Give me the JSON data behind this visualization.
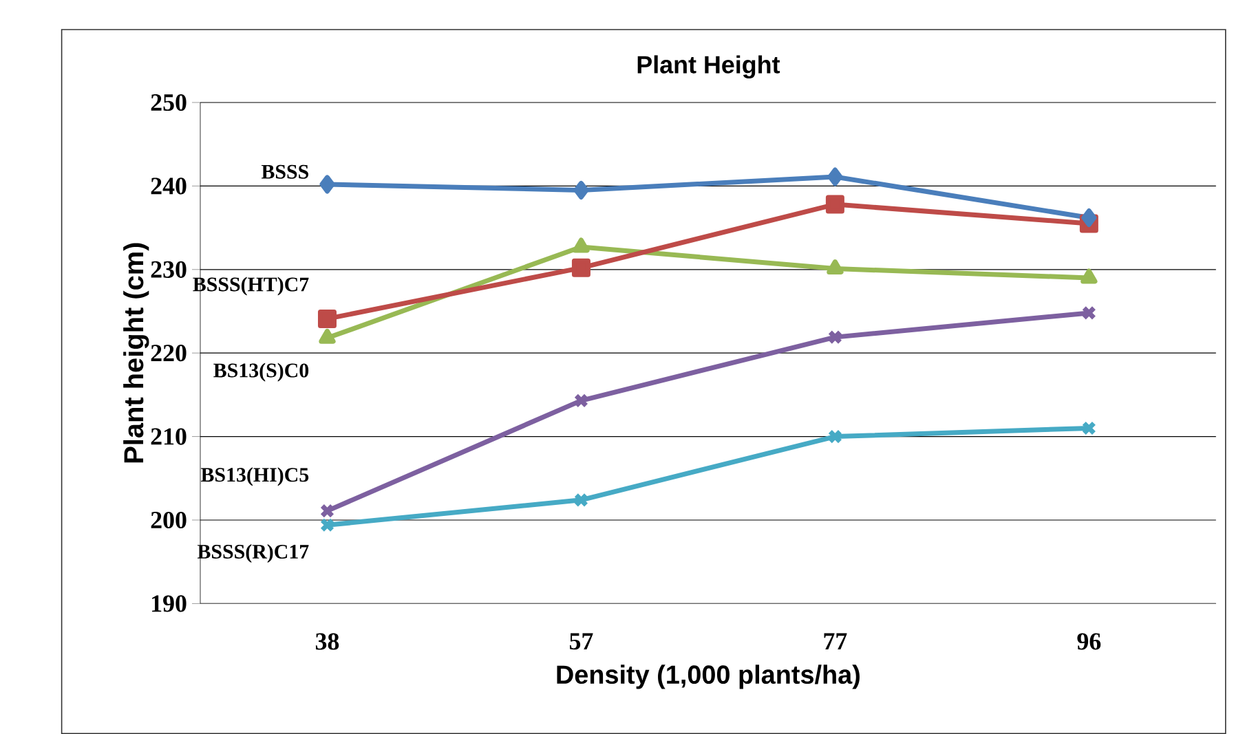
{
  "chart_data": {
    "type": "line",
    "title": "Plant Height",
    "xlabel": "Density (1,000 plants/ha)",
    "ylabel": "Plant height (cm)",
    "categories": [
      "38",
      "57",
      "77",
      "96"
    ],
    "series": [
      {
        "name": "BSSS",
        "color": "#4a7ebb",
        "marker": "diamond",
        "values": [
          240.2,
          239.5,
          241.1,
          236.2
        ]
      },
      {
        "name": "BSSS(HT)C7",
        "color": "#be4b48",
        "marker": "square",
        "values": [
          224.1,
          230.2,
          237.8,
          235.5
        ]
      },
      {
        "name": "BS13(S)C0",
        "color": "#98b954",
        "marker": "triangle",
        "values": [
          221.8,
          232.7,
          230.1,
          229.0
        ]
      },
      {
        "name": "BS13(HI)C5",
        "color": "#7d60a0",
        "marker": "cross",
        "values": [
          201.1,
          214.3,
          221.9,
          224.8
        ]
      },
      {
        "name": "BSSS(R)C17",
        "color": "#46aac5",
        "marker": "cross",
        "values": [
          199.4,
          202.4,
          210.0,
          211.0
        ]
      }
    ],
    "ylim": [
      190,
      250
    ],
    "yticks": [
      190,
      200,
      210,
      220,
      230,
      240,
      250
    ],
    "grid": "y",
    "line_style": "solid"
  }
}
